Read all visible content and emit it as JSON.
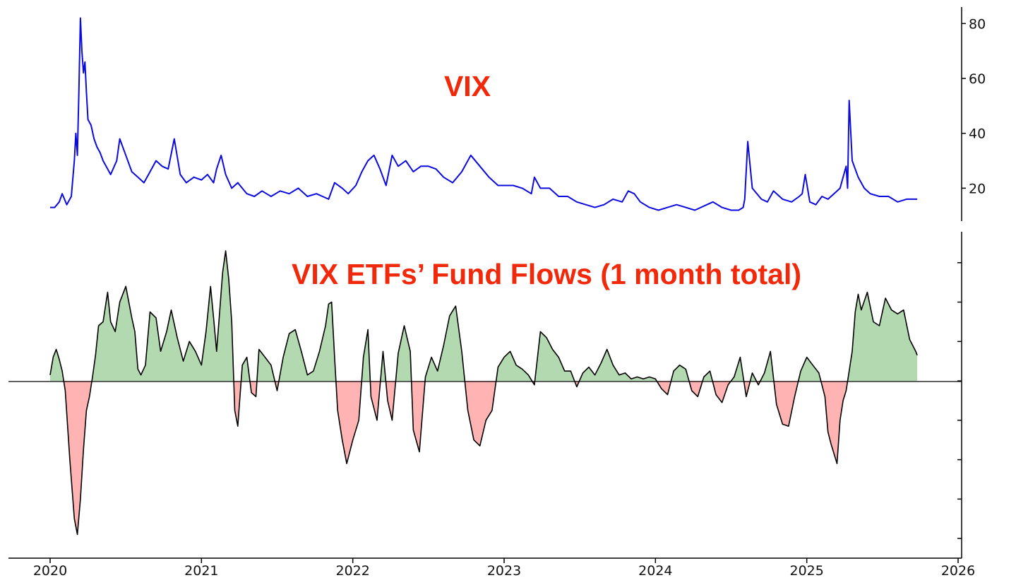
{
  "colors": {
    "vix_line": "#0b0be0",
    "inflow_fill": "#b3d9b0",
    "outflow_fill": "#ffb3b3",
    "flow_line": "#000000",
    "title": "#f2280a"
  },
  "chart_data": [
    {
      "type": "line",
      "title": "VIX",
      "xlabel": "",
      "ylabel": "",
      "xlim": [
        2019.88,
        2026.0
      ],
      "ylim": [
        8,
        86
      ],
      "y_axis_side": "right",
      "y_ticks": [
        20,
        40,
        60,
        80
      ],
      "y_tick_labels": [
        "20",
        "40",
        "60",
        "80"
      ],
      "grid": false,
      "series": [
        {
          "x": [
            2020.0,
            2020.03,
            2020.06,
            2020.08,
            2020.11,
            2020.14,
            2020.16,
            2020.17,
            2020.18,
            2020.19,
            2020.2,
            2020.21,
            2020.22,
            2020.23,
            2020.24,
            2020.25,
            2020.27,
            2020.29,
            2020.31,
            2020.33,
            2020.35,
            2020.37,
            2020.4,
            2020.44,
            2020.46,
            2020.5,
            2020.54,
            2020.58,
            2020.62,
            2020.66,
            2020.7,
            2020.74,
            2020.78,
            2020.82,
            2020.86,
            2020.9,
            2020.95,
            2021.0,
            2021.04,
            2021.08,
            2021.1,
            2021.13,
            2021.16,
            2021.2,
            2021.24,
            2021.3,
            2021.35,
            2021.4,
            2021.46,
            2021.52,
            2021.58,
            2021.64,
            2021.7,
            2021.76,
            2021.8,
            2021.84,
            2021.88,
            2021.93,
            2021.97,
            2022.02,
            2022.06,
            2022.1,
            2022.14,
            2022.18,
            2022.22,
            2022.26,
            2022.3,
            2022.35,
            2022.4,
            2022.45,
            2022.5,
            2022.55,
            2022.6,
            2022.66,
            2022.72,
            2022.78,
            2022.84,
            2022.9,
            2022.96,
            2023.0,
            2023.06,
            2023.12,
            2023.18,
            2023.2,
            2023.24,
            2023.3,
            2023.36,
            2023.42,
            2023.48,
            2023.54,
            2023.6,
            2023.66,
            2023.72,
            2023.78,
            2023.82,
            2023.86,
            2023.9,
            2023.96,
            2024.02,
            2024.08,
            2024.14,
            2024.2,
            2024.26,
            2024.3,
            2024.34,
            2024.38,
            2024.44,
            2024.5,
            2024.55,
            2024.58,
            2024.59,
            2024.61,
            2024.64,
            2024.7,
            2024.74,
            2024.78,
            2024.84,
            2024.9,
            2024.95,
            2024.97,
            2024.99,
            2025.02,
            2025.06,
            2025.1,
            2025.14,
            2025.18,
            2025.22,
            2025.24,
            2025.26,
            2025.27,
            2025.28,
            2025.3,
            2025.34,
            2025.38,
            2025.42,
            2025.48,
            2025.54,
            2025.6,
            2025.66,
            2025.7,
            2025.73
          ],
          "values": [
            13,
            13,
            15,
            18,
            14,
            17,
            30,
            40,
            32,
            55,
            82,
            70,
            62,
            66,
            55,
            45,
            43,
            38,
            35,
            33,
            30,
            28,
            25,
            30,
            38,
            32,
            26,
            24,
            22,
            26,
            30,
            28,
            27,
            38,
            25,
            22,
            24,
            23,
            25,
            22,
            27,
            32,
            25,
            20,
            22,
            18,
            17,
            19,
            17,
            19,
            18,
            20,
            17,
            18,
            17,
            16,
            22,
            20,
            18,
            21,
            26,
            30,
            32,
            27,
            21,
            32,
            28,
            30,
            26,
            28,
            28,
            27,
            24,
            22,
            26,
            32,
            28,
            24,
            21,
            21,
            21,
            20,
            18,
            24,
            20,
            20,
            17,
            17,
            15,
            14,
            13,
            14,
            16,
            15,
            19,
            18,
            15,
            13,
            12,
            13,
            14,
            13,
            12,
            13,
            14,
            15,
            13,
            12,
            12,
            13,
            16,
            37,
            20,
            16,
            15,
            19,
            16,
            15,
            17,
            18,
            25,
            15,
            14,
            17,
            16,
            18,
            20,
            24,
            28,
            20,
            52,
            30,
            24,
            20,
            18,
            17,
            17,
            15,
            16,
            16,
            16
          ],
          "color": "#0b0be0"
        }
      ]
    },
    {
      "type": "area",
      "title": "VIX ETFs’ Fund Flows (1 month total)",
      "xlabel": "",
      "ylabel": "",
      "xlim": [
        2019.88,
        2026.0
      ],
      "ylim": [
        -9,
        7.5
      ],
      "y_axis_side": "right",
      "y_ticks": [
        -8,
        -6,
        -4,
        -2,
        0,
        2,
        4,
        6
      ],
      "y_tick_labels": [],
      "baseline": 0,
      "grid": false,
      "positive_fill": "#b3d9b0",
      "negative_fill": "#ffb3b3",
      "x_ticks": [
        2020,
        2021,
        2022,
        2023,
        2024,
        2025,
        2026
      ],
      "x_tick_labels": [
        "2020",
        "2021",
        "2022",
        "2023",
        "2024",
        "2025",
        "2026"
      ],
      "series": [
        {
          "x": [
            2020.0,
            2020.02,
            2020.04,
            2020.06,
            2020.08,
            2020.1,
            2020.13,
            2020.16,
            2020.18,
            2020.2,
            2020.22,
            2020.24,
            2020.26,
            2020.28,
            2020.3,
            2020.32,
            2020.35,
            2020.38,
            2020.4,
            2020.43,
            2020.46,
            2020.5,
            2020.54,
            2020.56,
            2020.58,
            2020.6,
            2020.63,
            2020.66,
            2020.7,
            2020.73,
            2020.77,
            2020.8,
            2020.84,
            2020.88,
            2020.92,
            2020.96,
            2021.0,
            2021.03,
            2021.06,
            2021.08,
            2021.1,
            2021.12,
            2021.14,
            2021.16,
            2021.18,
            2021.2,
            2021.22,
            2021.24,
            2021.27,
            2021.3,
            2021.33,
            2021.36,
            2021.38,
            2021.42,
            2021.46,
            2021.5,
            2021.54,
            2021.58,
            2021.62,
            2021.66,
            2021.7,
            2021.74,
            2021.78,
            2021.82,
            2021.84,
            2021.86,
            2021.88,
            2021.9,
            2021.93,
            2021.96,
            2022.0,
            2022.04,
            2022.07,
            2022.1,
            2022.12,
            2022.16,
            2022.2,
            2022.23,
            2022.26,
            2022.3,
            2022.34,
            2022.38,
            2022.4,
            2022.44,
            2022.48,
            2022.52,
            2022.56,
            2022.6,
            2022.64,
            2022.68,
            2022.72,
            2022.76,
            2022.8,
            2022.84,
            2022.88,
            2022.92,
            2022.96,
            2023.0,
            2023.04,
            2023.08,
            2023.12,
            2023.16,
            2023.2,
            2023.24,
            2023.28,
            2023.32,
            2023.36,
            2023.4,
            2023.44,
            2023.48,
            2023.52,
            2023.56,
            2023.6,
            2023.64,
            2023.68,
            2023.72,
            2023.76,
            2023.8,
            2023.84,
            2023.88,
            2023.92,
            2023.96,
            2024.0,
            2024.04,
            2024.08,
            2024.12,
            2024.16,
            2024.2,
            2024.24,
            2024.28,
            2024.32,
            2024.36,
            2024.4,
            2024.44,
            2024.48,
            2024.52,
            2024.56,
            2024.6,
            2024.64,
            2024.68,
            2024.72,
            2024.76,
            2024.8,
            2024.84,
            2024.88,
            2024.92,
            2024.96,
            2025.0,
            2025.04,
            2025.08,
            2025.12,
            2025.14,
            2025.16,
            2025.2,
            2025.22,
            2025.24,
            2025.26,
            2025.28,
            2025.3,
            2025.32,
            2025.34,
            2025.36,
            2025.4,
            2025.44,
            2025.48,
            2025.52,
            2025.56,
            2025.6,
            2025.64,
            2025.68,
            2025.72,
            2025.73
          ],
          "values": [
            0.3,
            1.2,
            1.6,
            1.1,
            0.5,
            -0.5,
            -4,
            -7,
            -7.8,
            -6,
            -3.5,
            -1.5,
            -0.8,
            0.2,
            1.3,
            2.8,
            3,
            4.5,
            3,
            2.5,
            4,
            4.8,
            3.2,
            2.5,
            0.6,
            0.3,
            0.8,
            3.5,
            3.2,
            1.5,
            2.5,
            3.6,
            2.2,
            1,
            2,
            1.5,
            0.8,
            2.5,
            4.8,
            3.2,
            1.5,
            3.5,
            5.5,
            6.6,
            5.2,
            3,
            -1.5,
            -2.3,
            0.8,
            1.2,
            -0.6,
            -0.8,
            1.6,
            1.2,
            0.8,
            -0.5,
            1.2,
            2.4,
            2.6,
            1.5,
            0.3,
            0.5,
            1.5,
            2.8,
            3.9,
            4,
            1.2,
            -1.5,
            -3,
            -4.2,
            -3,
            -2,
            1.2,
            2.6,
            -0.8,
            -2,
            1.5,
            -1,
            -2,
            1.4,
            2.8,
            1.5,
            -2.5,
            -3.6,
            0.2,
            1.2,
            0.5,
            1.8,
            3.3,
            3.8,
            1.5,
            -1.5,
            -3,
            -3.3,
            -2,
            -1.5,
            0.7,
            1.2,
            1.5,
            0.8,
            0.6,
            0.3,
            -0.2,
            2.5,
            2.2,
            1.6,
            1.2,
            0.5,
            0.5,
            -0.3,
            0.4,
            0.7,
            0.3,
            0.9,
            1.6,
            0.8,
            0.3,
            0.4,
            0.1,
            0.2,
            0.1,
            0.2,
            0.1,
            -0.4,
            -0.7,
            0.5,
            0.8,
            0.6,
            -0.5,
            -0.8,
            0.2,
            0.5,
            -0.7,
            -1.1,
            -0.2,
            0.2,
            1.2,
            -0.8,
            0.4,
            -0.2,
            0.4,
            1.5,
            -1.2,
            -2.2,
            -2.3,
            -0.8,
            0.5,
            1.2,
            0.8,
            0.4,
            -0.8,
            -2.6,
            -3.2,
            -4.2,
            -2,
            -1,
            -0.5,
            0.5,
            1.5,
            3.5,
            4.4,
            3.6,
            4.5,
            3,
            2.8,
            4.2,
            3.6,
            3.4,
            3.6,
            2.1,
            1.5,
            1.3
          ]
        }
      ]
    }
  ]
}
